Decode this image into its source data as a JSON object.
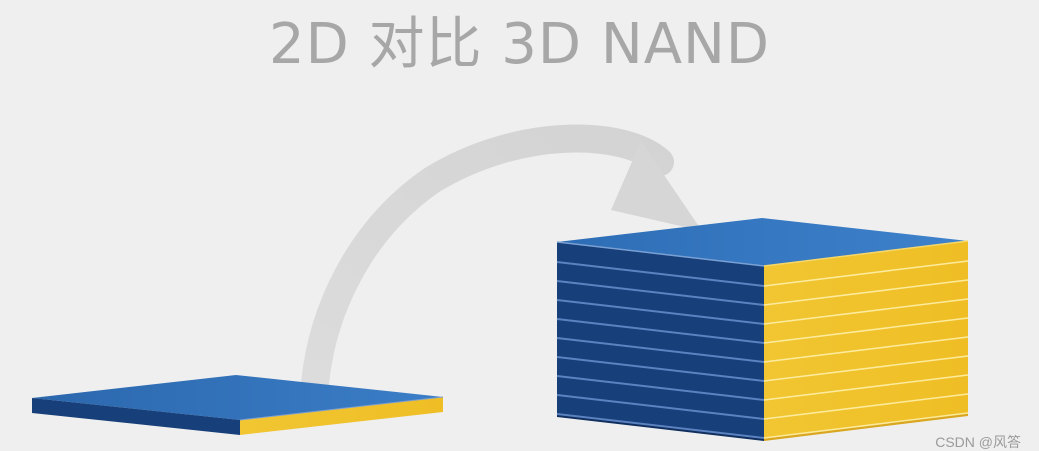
{
  "title": "2D 对比 3D NAND",
  "watermark": "CSDN @风答",
  "colors": {
    "background": "#efefef",
    "title": "#a7a7a7",
    "arrow": "#d8d8d8",
    "layer_top": "#2f6fb8",
    "layer_front": "#173f7a",
    "layer_side": "#f0c431",
    "layer_side_shadow": "#d9a61f"
  },
  "diagram": {
    "left_stack_layers": 1,
    "right_stack_layers": 10,
    "icons": [
      "curved-arrow-icon"
    ]
  }
}
